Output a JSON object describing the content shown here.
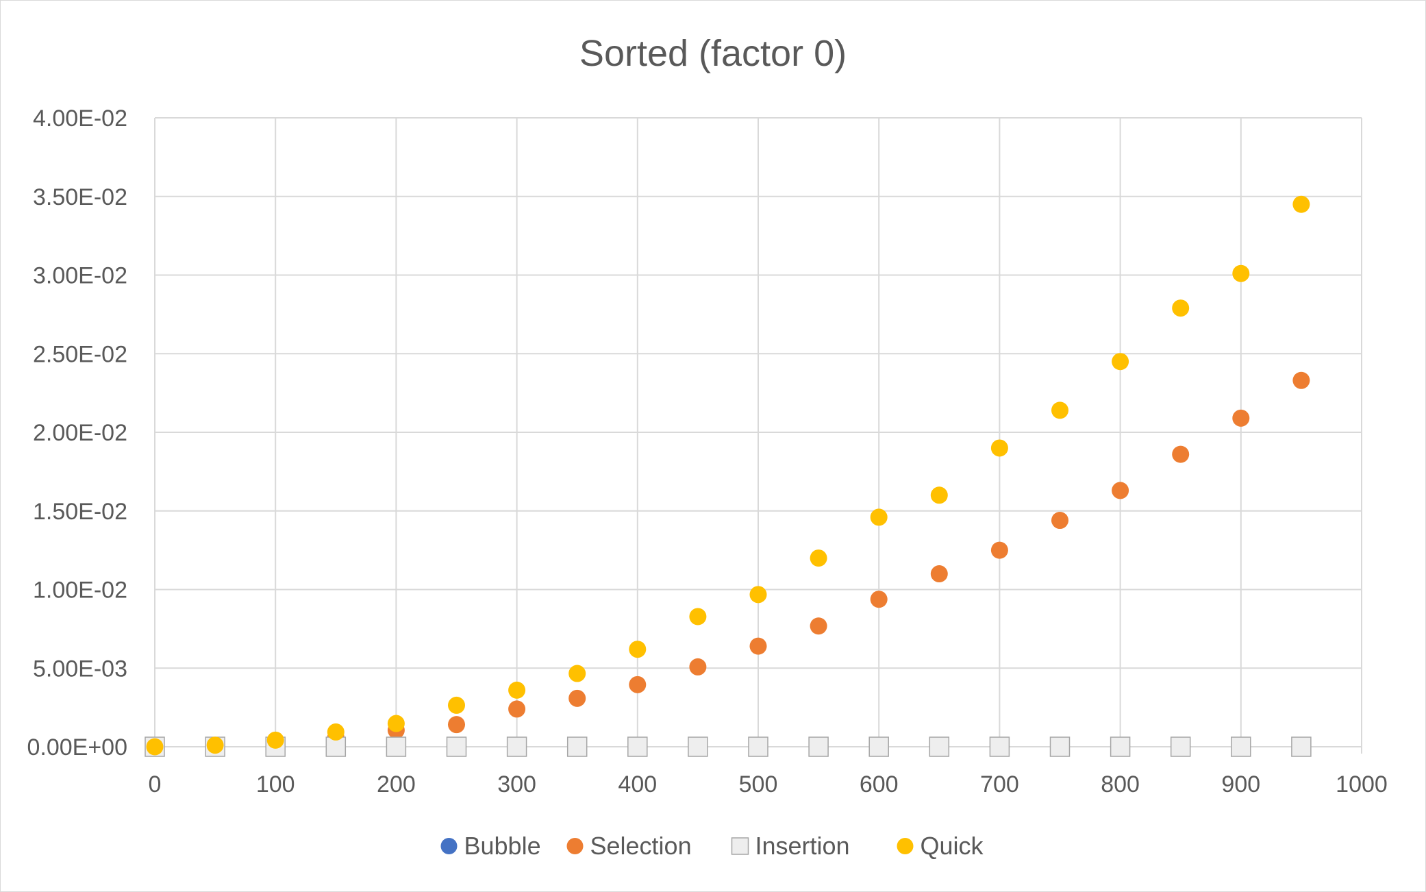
{
  "chart_data": {
    "type": "scatter",
    "title": "Sorted (factor 0)",
    "xlabel": "",
    "ylabel": "",
    "xlim": [
      0,
      1000
    ],
    "ylim": [
      0,
      0.04
    ],
    "x_ticks": [
      "0",
      "100",
      "200",
      "300",
      "400",
      "500",
      "600",
      "700",
      "800",
      "900",
      "1000"
    ],
    "y_ticks": [
      "0.00E+00",
      "5.00E-03",
      "1.00E-02",
      "1.50E-02",
      "2.00E-02",
      "2.50E-02",
      "3.00E-02",
      "3.50E-02",
      "4.00E-02"
    ],
    "grid": true,
    "legend_position": "bottom",
    "x": [
      0,
      50,
      100,
      150,
      200,
      250,
      300,
      350,
      400,
      450,
      500,
      550,
      600,
      650,
      700,
      750,
      800,
      850,
      900,
      950
    ],
    "series": [
      {
        "name": "Bubble",
        "color": "#4472C4",
        "marker": "circle",
        "values": [
          0,
          0,
          0,
          0,
          1e-05,
          1e-05,
          1e-05,
          1e-05,
          2e-05,
          2e-05,
          2e-05,
          2e-05,
          3e-05,
          3e-05,
          3e-05,
          3e-05,
          4e-05,
          4e-05,
          5e-05,
          5e-05
        ]
      },
      {
        "name": "Selection",
        "color": "#ED7D31",
        "marker": "circle",
        "values": [
          0,
          7e-05,
          0.00028,
          0.00061,
          0.00105,
          0.00141,
          0.0024,
          0.00308,
          0.00395,
          0.00508,
          0.0064,
          0.00768,
          0.00938,
          0.011,
          0.0125,
          0.0144,
          0.0163,
          0.0186,
          0.0209,
          0.0233
        ]
      },
      {
        "name": "Insertion",
        "color": "#EEEEEE",
        "marker": "square",
        "values": [
          0,
          0,
          0,
          0,
          0,
          0,
          0,
          0,
          0,
          0,
          0,
          0,
          0,
          0,
          0,
          0,
          0,
          0,
          0,
          0
        ]
      },
      {
        "name": "Quick",
        "color": "#FFC000",
        "marker": "circle",
        "values": [
          0,
          0.0001,
          0.00042,
          0.00094,
          0.00148,
          0.00264,
          0.0036,
          0.00466,
          0.0062,
          0.00828,
          0.00968,
          0.012,
          0.0146,
          0.016,
          0.019,
          0.0214,
          0.0245,
          0.0279,
          0.0301,
          0.0345
        ]
      }
    ]
  }
}
